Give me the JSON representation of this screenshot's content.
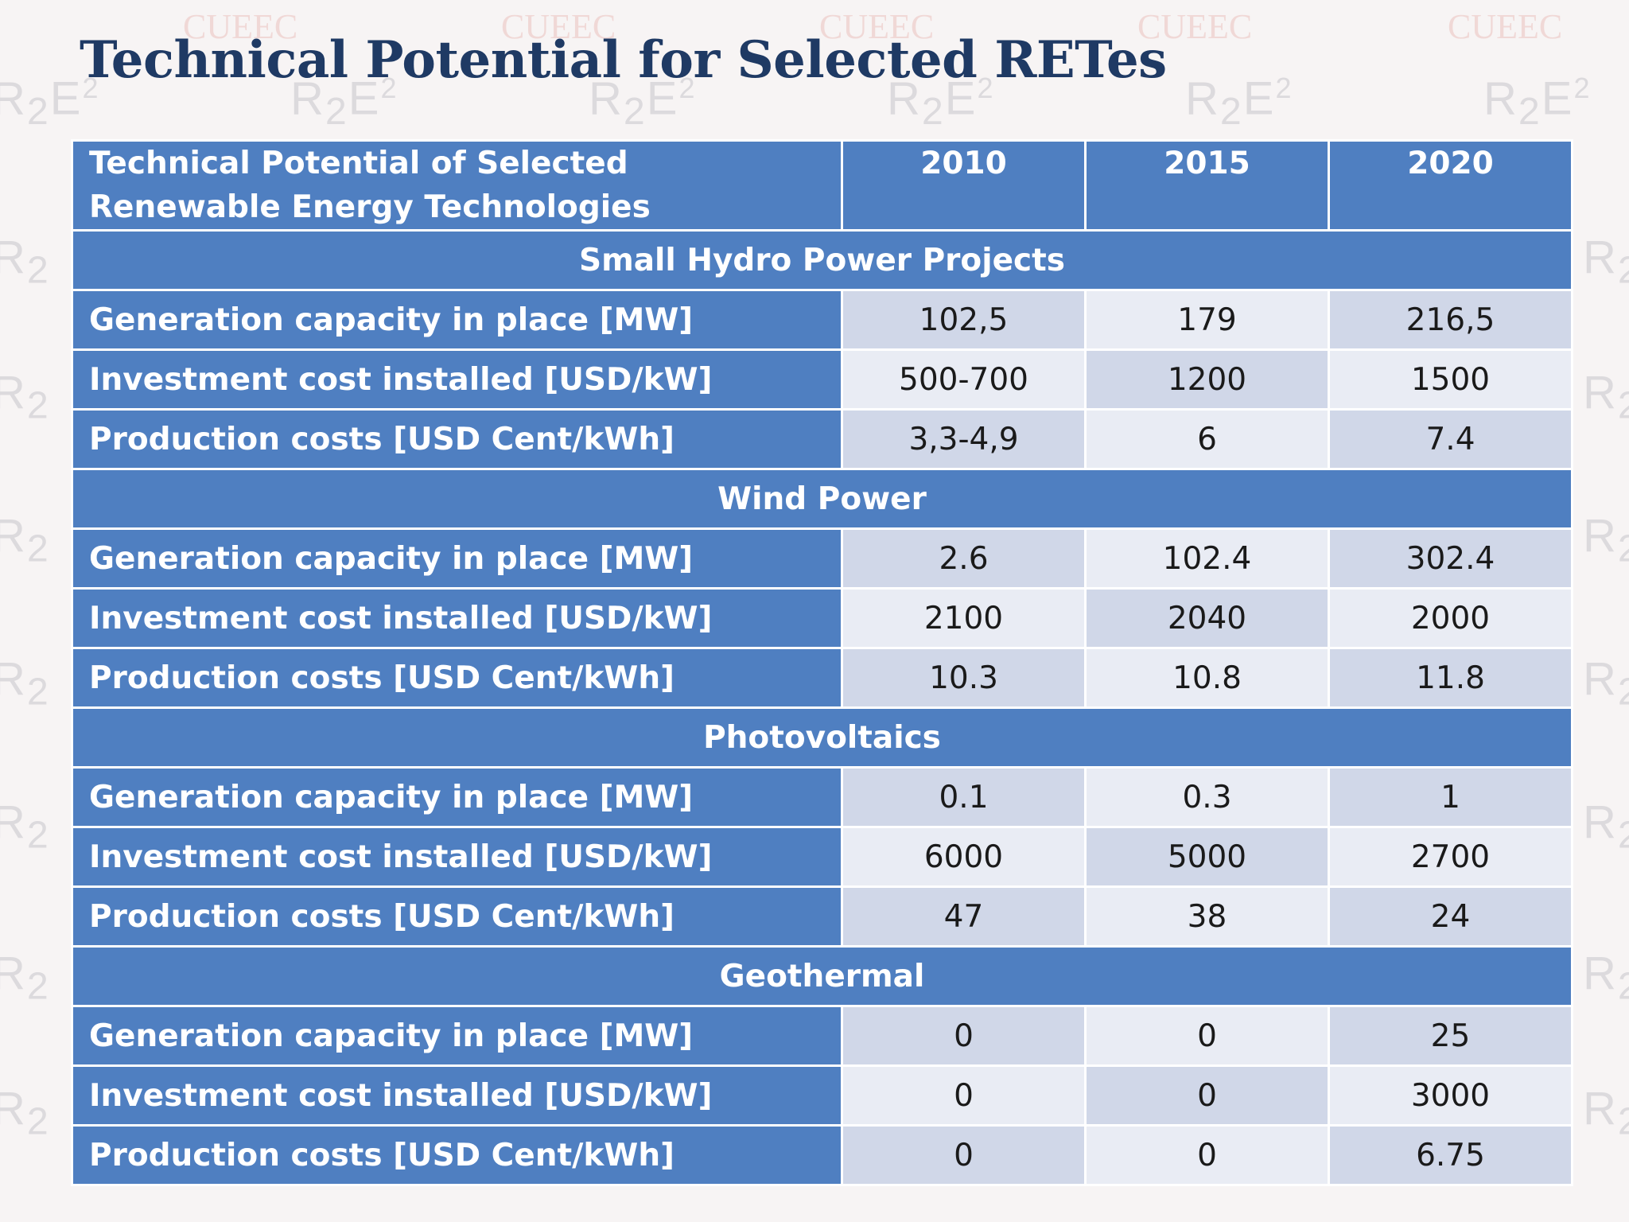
{
  "title": "Technical  Potential for Selected RETes",
  "watermark": {
    "r2e2": "R",
    "r2e2_sub": "2",
    "r2e2_e": "E",
    "r2e2_sup": "2",
    "cueec": "CUEEC"
  },
  "table": {
    "header": {
      "label": "Technical Potential of Selected Renewable Energy Technologies",
      "years": [
        "2010",
        "2015",
        "2020"
      ]
    },
    "sections": [
      {
        "name": "Small Hydro Power Projects",
        "rows": [
          {
            "label": "Generation capacity in place [MW]",
            "values": [
              "102,5",
              "179",
              "216,5"
            ]
          },
          {
            "label": "Investment cost installed [USD/kW]",
            "values": [
              "500-700",
              "1200",
              "1500"
            ]
          },
          {
            "label": "Production costs [USD Cent/kWh]",
            "values": [
              "3,3-4,9",
              "6",
              "7.4"
            ]
          }
        ]
      },
      {
        "name": "Wind Power",
        "rows": [
          {
            "label": "Generation capacity in place [MW]",
            "values": [
              "2.6",
              "102.4",
              "302.4"
            ]
          },
          {
            "label": "Investment cost installed [USD/kW]",
            "values": [
              "2100",
              "2040",
              "2000"
            ]
          },
          {
            "label": "Production costs [USD Cent/kWh]",
            "values": [
              "10.3",
              "10.8",
              "11.8"
            ]
          }
        ]
      },
      {
        "name": "Photovoltaics",
        "rows": [
          {
            "label": "Generation capacity in place [MW]",
            "values": [
              "0.1",
              "0.3",
              "1"
            ]
          },
          {
            "label": "Investment cost installed [USD/kW]",
            "values": [
              "6000",
              "5000",
              "2700"
            ]
          },
          {
            "label": "Production costs [USD Cent/kWh]",
            "values": [
              "47",
              "38",
              "24"
            ]
          }
        ]
      },
      {
        "name": "Geothermal",
        "rows": [
          {
            "label": "Generation capacity in place [MW]",
            "values": [
              "0",
              "0",
              "25"
            ]
          },
          {
            "label": "Investment cost installed [USD/kW]",
            "values": [
              "0",
              "0",
              "3000"
            ]
          },
          {
            "label": "Production costs [USD Cent/kWh]",
            "values": [
              "0",
              "0",
              "6.75"
            ]
          }
        ]
      }
    ]
  }
}
